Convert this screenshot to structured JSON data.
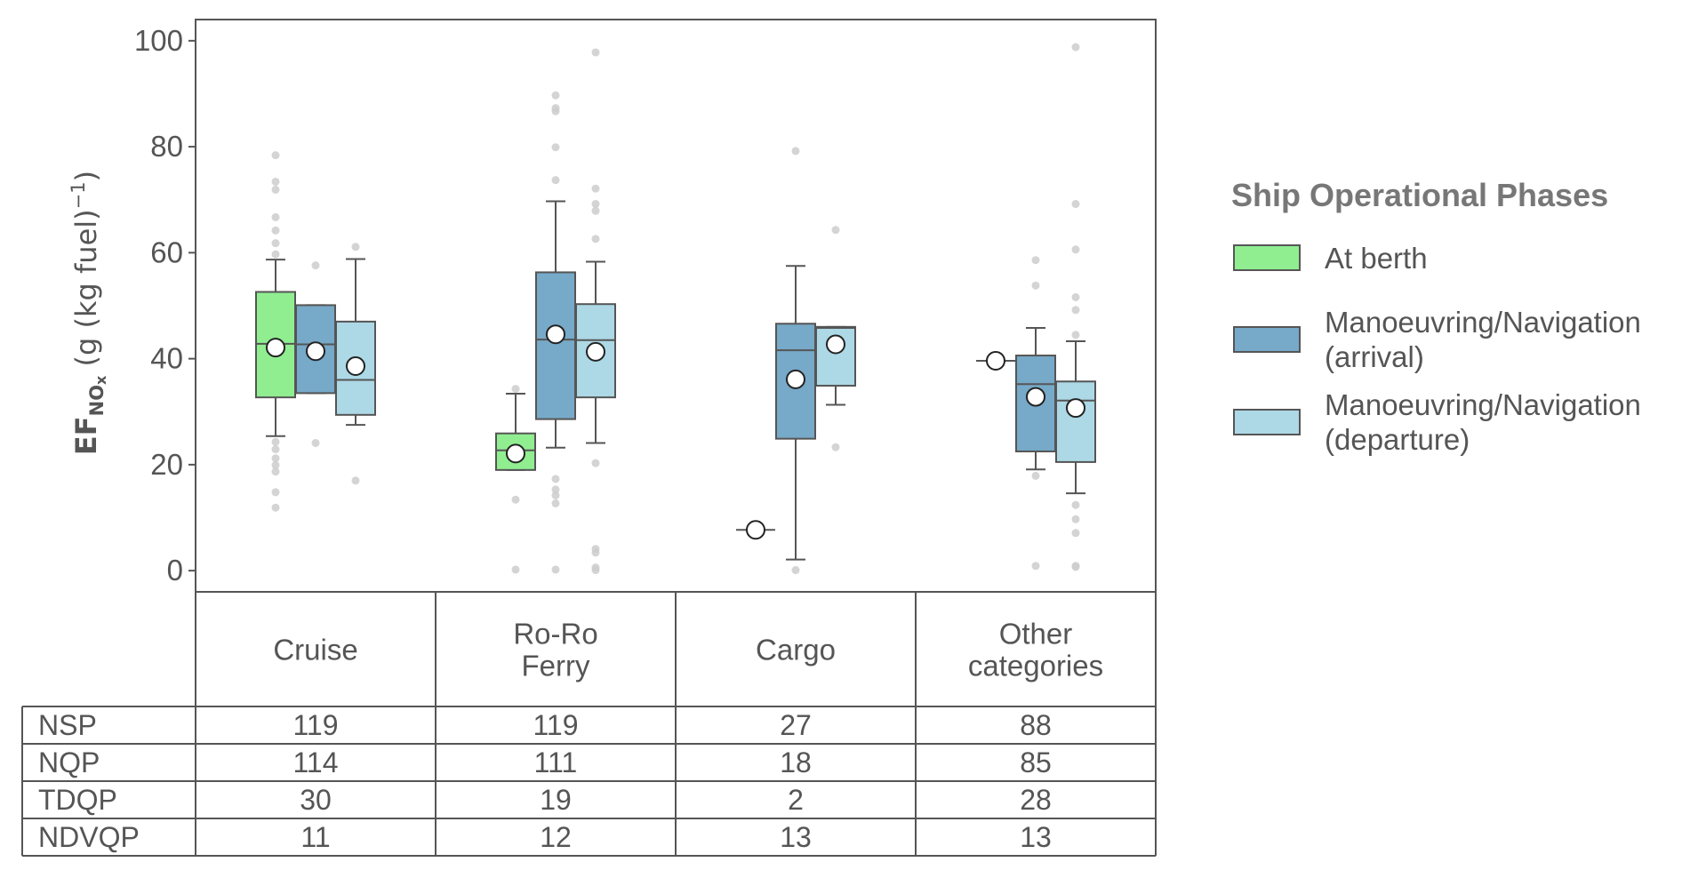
{
  "chart_data": {
    "type": "box",
    "ylabel_main": "EF",
    "ylabel_sub": "NO",
    "ylabel_subsub": "x",
    "ylabel_rest": " (g (kg fuel)",
    "ylabel_sup": "−1",
    "ylabel_close": ")",
    "ylim": [
      -4,
      104
    ],
    "yticks": [
      0,
      20,
      40,
      60,
      80,
      100
    ],
    "categories": [
      "Cruise",
      "Ro-Ro\nFerry",
      "Cargo",
      "Other\ncategories"
    ],
    "legend_title": "Ship Operational Phases",
    "series": [
      {
        "name": "At berth",
        "color": "#90ee90"
      },
      {
        "name": "Manoeuvring/Navigation\n(arrival)",
        "color": "#77a9c8"
      },
      {
        "name": "Manoeuvring/Navigation\n(departure)",
        "color": "#add8e6"
      }
    ],
    "boxes": [
      [
        {
          "q1": 32.7,
          "median": 42.8,
          "q3": 52.6,
          "wlo": 25.4,
          "whi": 58.7,
          "mean": 42.1,
          "outliers": [
            78.4,
            73.4,
            71.9,
            66.7,
            64.2,
            61.8,
            59.7,
            24.3,
            22.9,
            21.2,
            19.9,
            18.7,
            14.8,
            11.9
          ]
        },
        {
          "q1": 33.5,
          "median": 42.7,
          "q3": 50.1,
          "wlo": 33.5,
          "whi": 50.1,
          "mean": 41.4,
          "outliers": [
            57.6,
            24.1
          ]
        },
        {
          "q1": 29.4,
          "median": 36.0,
          "q3": 47.0,
          "wlo": 27.5,
          "whi": 58.8,
          "mean": 38.6,
          "outliers": [
            61.1,
            17.0
          ]
        }
      ],
      [
        {
          "q1": 19.0,
          "median": 22.7,
          "q3": 25.9,
          "wlo": 19.0,
          "whi": 33.4,
          "mean": 22.1,
          "outliers": [
            34.3,
            13.4,
            0.2
          ]
        },
        {
          "q1": 28.6,
          "median": 43.6,
          "q3": 56.3,
          "wlo": 23.2,
          "whi": 69.7,
          "mean": 44.6,
          "outliers": [
            89.7,
            87.3,
            86.7,
            79.9,
            73.7,
            17.3,
            15.3,
            14.2,
            12.7,
            0.2
          ]
        },
        {
          "q1": 32.7,
          "median": 43.5,
          "q3": 50.3,
          "wlo": 24.1,
          "whi": 58.3,
          "mean": 41.3,
          "outliers": [
            97.8,
            72.1,
            69.2,
            67.9,
            62.6,
            20.3,
            4.1,
            3.4,
            0.6,
            0.1
          ]
        }
      ],
      [
        {
          "q1": 7.7,
          "median": 7.7,
          "q3": 7.7,
          "wlo": 7.7,
          "whi": 7.7,
          "mean": 7.7,
          "outliers": []
        },
        {
          "q1": 24.9,
          "median": 41.6,
          "q3": 46.6,
          "wlo": 2.1,
          "whi": 57.5,
          "mean": 36.1,
          "outliers": [
            79.2,
            0.1
          ]
        },
        {
          "q1": 34.9,
          "median": 45.8,
          "q3": 46.0,
          "wlo": 31.3,
          "whi": 46.0,
          "mean": 42.7,
          "outliers": [
            64.3,
            23.3
          ]
        }
      ],
      [
        {
          "q1": 39.6,
          "median": 39.6,
          "q3": 39.6,
          "wlo": 39.6,
          "whi": 39.6,
          "mean": 39.6,
          "outliers": []
        },
        {
          "q1": 22.5,
          "median": 35.2,
          "q3": 40.6,
          "wlo": 19.1,
          "whi": 45.8,
          "mean": 32.8,
          "outliers": [
            58.6,
            53.8,
            17.9,
            0.9
          ]
        },
        {
          "q1": 20.5,
          "median": 32.1,
          "q3": 35.7,
          "wlo": 14.6,
          "whi": 43.3,
          "mean": 30.7,
          "outliers": [
            98.8,
            69.2,
            60.6,
            51.6,
            49.2,
            44.5,
            12.4,
            9.7,
            7.1,
            0.9,
            0.7
          ]
        }
      ]
    ],
    "table": {
      "rows": [
        {
          "label": "NSP",
          "values": [
            "119",
            "119",
            "27",
            "88"
          ]
        },
        {
          "label": "NQP",
          "values": [
            "114",
            "111",
            "18",
            "85"
          ]
        },
        {
          "label": "TDQP",
          "values": [
            "30",
            "19",
            "2",
            "28"
          ]
        },
        {
          "label": "NDVQP",
          "values": [
            "11",
            "12",
            "13",
            "13"
          ]
        }
      ]
    }
  }
}
